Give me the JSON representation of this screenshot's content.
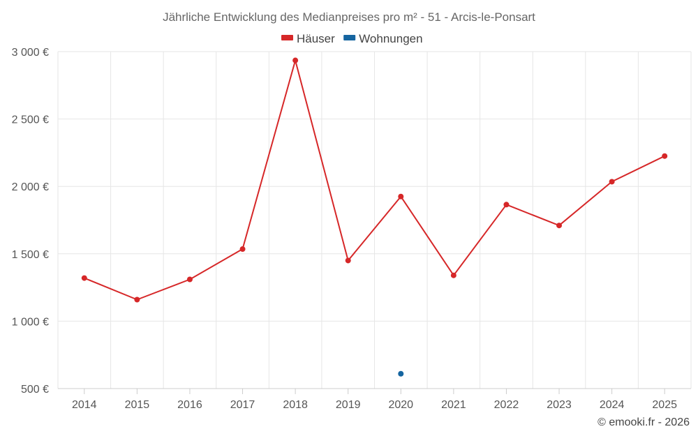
{
  "chart_data": {
    "type": "line",
    "title": "Jährliche Entwicklung des Medianpreises pro m² - 51 - Arcis-le-Ponsart",
    "categories": [
      "2014",
      "2015",
      "2016",
      "2017",
      "2018",
      "2019",
      "2020",
      "2021",
      "2022",
      "2023",
      "2024",
      "2025"
    ],
    "series": [
      {
        "name": "Häuser",
        "color": "#d62728",
        "values": [
          1320,
          1160,
          1310,
          1535,
          2935,
          1450,
          1925,
          1340,
          1865,
          1710,
          2035,
          2225
        ]
      },
      {
        "name": "Wohnungen",
        "color": "#1565a0",
        "values": [
          null,
          null,
          null,
          null,
          null,
          null,
          610,
          null,
          null,
          null,
          null,
          null
        ]
      }
    ],
    "ylim": [
      500,
      3000
    ],
    "yticks": [
      500,
      1000,
      1500,
      2000,
      2500,
      3000
    ],
    "ytick_labels": [
      "500 €",
      "1 000 €",
      "1 500 €",
      "2 000 €",
      "2 500 €",
      "3 000 €"
    ],
    "grid": true,
    "legend_position": "top-center"
  },
  "credit": "© emooki.fr - 2026"
}
